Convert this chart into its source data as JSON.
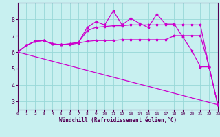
{
  "bg_color": "#c8f0f0",
  "line_color": "#cc00cc",
  "grid_color": "#98d8d8",
  "xlabel": "Windchill (Refroidissement éolien,°C)",
  "xlim": [
    0,
    23
  ],
  "ylim": [
    2.5,
    9.0
  ],
  "xticks": [
    0,
    1,
    2,
    3,
    4,
    5,
    6,
    7,
    8,
    9,
    10,
    11,
    12,
    13,
    14,
    15,
    16,
    17,
    18,
    19,
    20,
    21,
    22,
    23
  ],
  "yticks": [
    3,
    4,
    5,
    6,
    7,
    8
  ],
  "line_diagonal": {
    "x": [
      0,
      23
    ],
    "y": [
      6.0,
      2.8
    ]
  },
  "line_flat": {
    "x": [
      0,
      1,
      2,
      3,
      4,
      5,
      6,
      7,
      8,
      9,
      10,
      11,
      12,
      13,
      14,
      15,
      16,
      17,
      18,
      19,
      20,
      21,
      22,
      23
    ],
    "y": [
      6.0,
      6.4,
      6.65,
      6.7,
      6.5,
      6.45,
      6.45,
      6.55,
      6.65,
      6.7,
      6.7,
      6.7,
      6.75,
      6.75,
      6.75,
      6.75,
      6.75,
      6.75,
      7.0,
      7.0,
      7.0,
      7.0,
      5.1,
      2.8
    ]
  },
  "line_mid": {
    "x": [
      0,
      1,
      2,
      3,
      4,
      5,
      6,
      7,
      8,
      9,
      10,
      11,
      12,
      13,
      14,
      15,
      16,
      17,
      18,
      19,
      20,
      21,
      22,
      23
    ],
    "y": [
      6.0,
      6.4,
      6.65,
      6.7,
      6.5,
      6.45,
      6.5,
      6.6,
      7.3,
      7.5,
      7.55,
      7.6,
      7.6,
      7.65,
      7.65,
      7.65,
      7.65,
      7.65,
      7.65,
      7.65,
      7.65,
      7.65,
      5.1,
      2.8
    ]
  },
  "line_top": {
    "x": [
      0,
      1,
      2,
      3,
      4,
      5,
      6,
      7,
      8,
      9,
      10,
      11,
      12,
      13,
      14,
      15,
      16,
      17,
      18,
      19,
      20,
      21,
      22,
      23
    ],
    "y": [
      6.0,
      6.4,
      6.65,
      6.7,
      6.5,
      6.45,
      6.5,
      6.6,
      7.5,
      7.85,
      7.65,
      8.5,
      7.65,
      8.05,
      7.75,
      7.5,
      8.3,
      7.7,
      7.7,
      6.9,
      6.1,
      5.1,
      5.1,
      2.8
    ]
  },
  "lw": 0.9,
  "ms": 2.5
}
